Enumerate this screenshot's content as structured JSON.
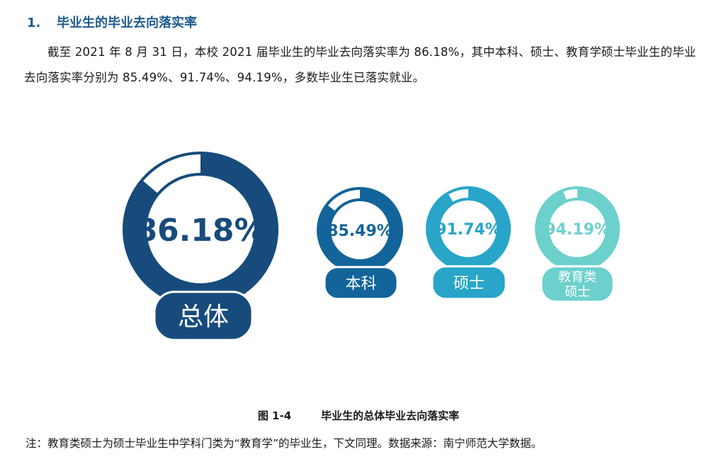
{
  "heading": {
    "number": "1.",
    "title": "毕业生的毕业去向落实率"
  },
  "intro_text": "截至 2021 年 8 月 31 日，本校 2021 届毕业生的毕业去向落实率为 86.18%，其中本科、硕士、教育学硕士毕业生的毕业去向落实率分别为 85.49%、91.74%、94.19%，多数毕业生已落实就业。",
  "chart_data": {
    "type": "donut",
    "items": [
      {
        "category": "总体",
        "value": 86.18,
        "label": "86.18%",
        "color": "#174b7c"
      },
      {
        "category": "本科",
        "value": 85.49,
        "label": "85.49%",
        "color": "#13649a"
      },
      {
        "category": "硕士",
        "value": 91.74,
        "label": "91.74%",
        "color": "#28a5c8"
      },
      {
        "category_lines": [
          "教育类",
          "硕士"
        ],
        "value": 94.19,
        "label": "94.19%",
        "color": "#6cd0cd"
      }
    ],
    "max": 100
  },
  "caption": {
    "figure_no": "图 1-4",
    "title": "毕业生的总体毕业去向落实率"
  },
  "note": "注：教育类硕士为硕士毕业生中学科门类为“教育学”的毕业生，下文同理。数据来源：南宁师范大学数据。"
}
